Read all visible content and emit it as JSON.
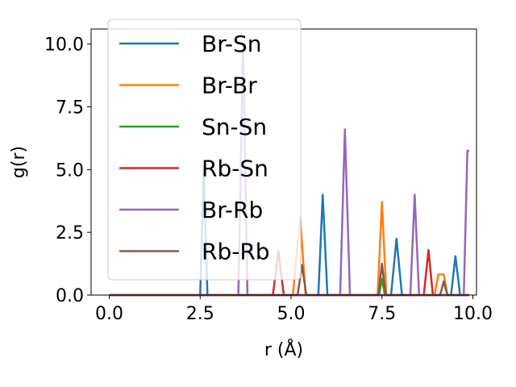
{
  "chart_data": {
    "type": "line",
    "xlabel": "r (Å)",
    "ylabel": "g(r)",
    "xlim": [
      -0.5,
      10.1
    ],
    "ylim": [
      0,
      10.6
    ],
    "xticks": [
      0.0,
      2.5,
      5.0,
      7.5,
      10.0
    ],
    "xtick_labels": [
      "0.0",
      "2.5",
      "5.0",
      "7.5",
      "10.0"
    ],
    "yticks": [
      0.0,
      2.5,
      5.0,
      7.5,
      10.0
    ],
    "ytick_labels": [
      "0.0",
      "2.5",
      "5.0",
      "7.5",
      "10.0"
    ],
    "grid": false,
    "legend_position": "top-left",
    "series": [
      {
        "name": "Br-Sn",
        "color": "#1f77b4",
        "x": [
          0.0,
          2.5,
          2.6,
          2.7,
          5.75,
          5.87,
          6.0,
          7.75,
          7.9,
          8.05,
          9.4,
          9.52,
          9.65,
          9.9
        ],
        "y": [
          0,
          0,
          5.05,
          0,
          0,
          4.0,
          0,
          0,
          2.25,
          0,
          0,
          1.55,
          0,
          0
        ]
      },
      {
        "name": "Br-Br",
        "color": "#ff7f0e",
        "x": [
          0.0,
          5.05,
          5.25,
          5.4,
          7.38,
          7.5,
          7.62,
          8.95,
          9.05,
          9.2,
          9.3,
          9.9
        ],
        "y": [
          0,
          0,
          3.1,
          0,
          0,
          3.72,
          0,
          0,
          0.82,
          0.82,
          0,
          0
        ]
      },
      {
        "name": "Sn-Sn",
        "color": "#2ca02c",
        "x": [
          0.0,
          7.42,
          7.5,
          7.58,
          9.9
        ],
        "y": [
          0,
          0,
          0.65,
          0,
          0
        ]
      },
      {
        "name": "Rb-Sn",
        "color": "#d62728",
        "x": [
          0.0,
          4.5,
          4.65,
          4.8,
          8.65,
          8.78,
          8.9,
          9.9
        ],
        "y": [
          0,
          0,
          1.75,
          0,
          0,
          1.8,
          0,
          0
        ]
      },
      {
        "name": "Br-Rb",
        "color": "#9467bd",
        "x": [
          0.0,
          3.55,
          3.68,
          3.8,
          6.35,
          6.48,
          6.62,
          8.28,
          8.4,
          8.52,
          9.75,
          9.85,
          9.9
        ],
        "y": [
          0,
          0,
          10.0,
          0,
          0,
          6.6,
          0,
          0,
          4.0,
          0,
          0,
          5.75,
          5.75
        ]
      },
      {
        "name": "Rb-Rb",
        "color": "#8c564b",
        "x": [
          0.0,
          5.18,
          5.3,
          5.42,
          7.4,
          7.5,
          7.6,
          9.1,
          9.2,
          9.3,
          9.9
        ],
        "y": [
          0,
          0,
          1.2,
          0,
          0,
          1.25,
          0,
          0,
          0.55,
          0,
          0
        ]
      }
    ]
  }
}
